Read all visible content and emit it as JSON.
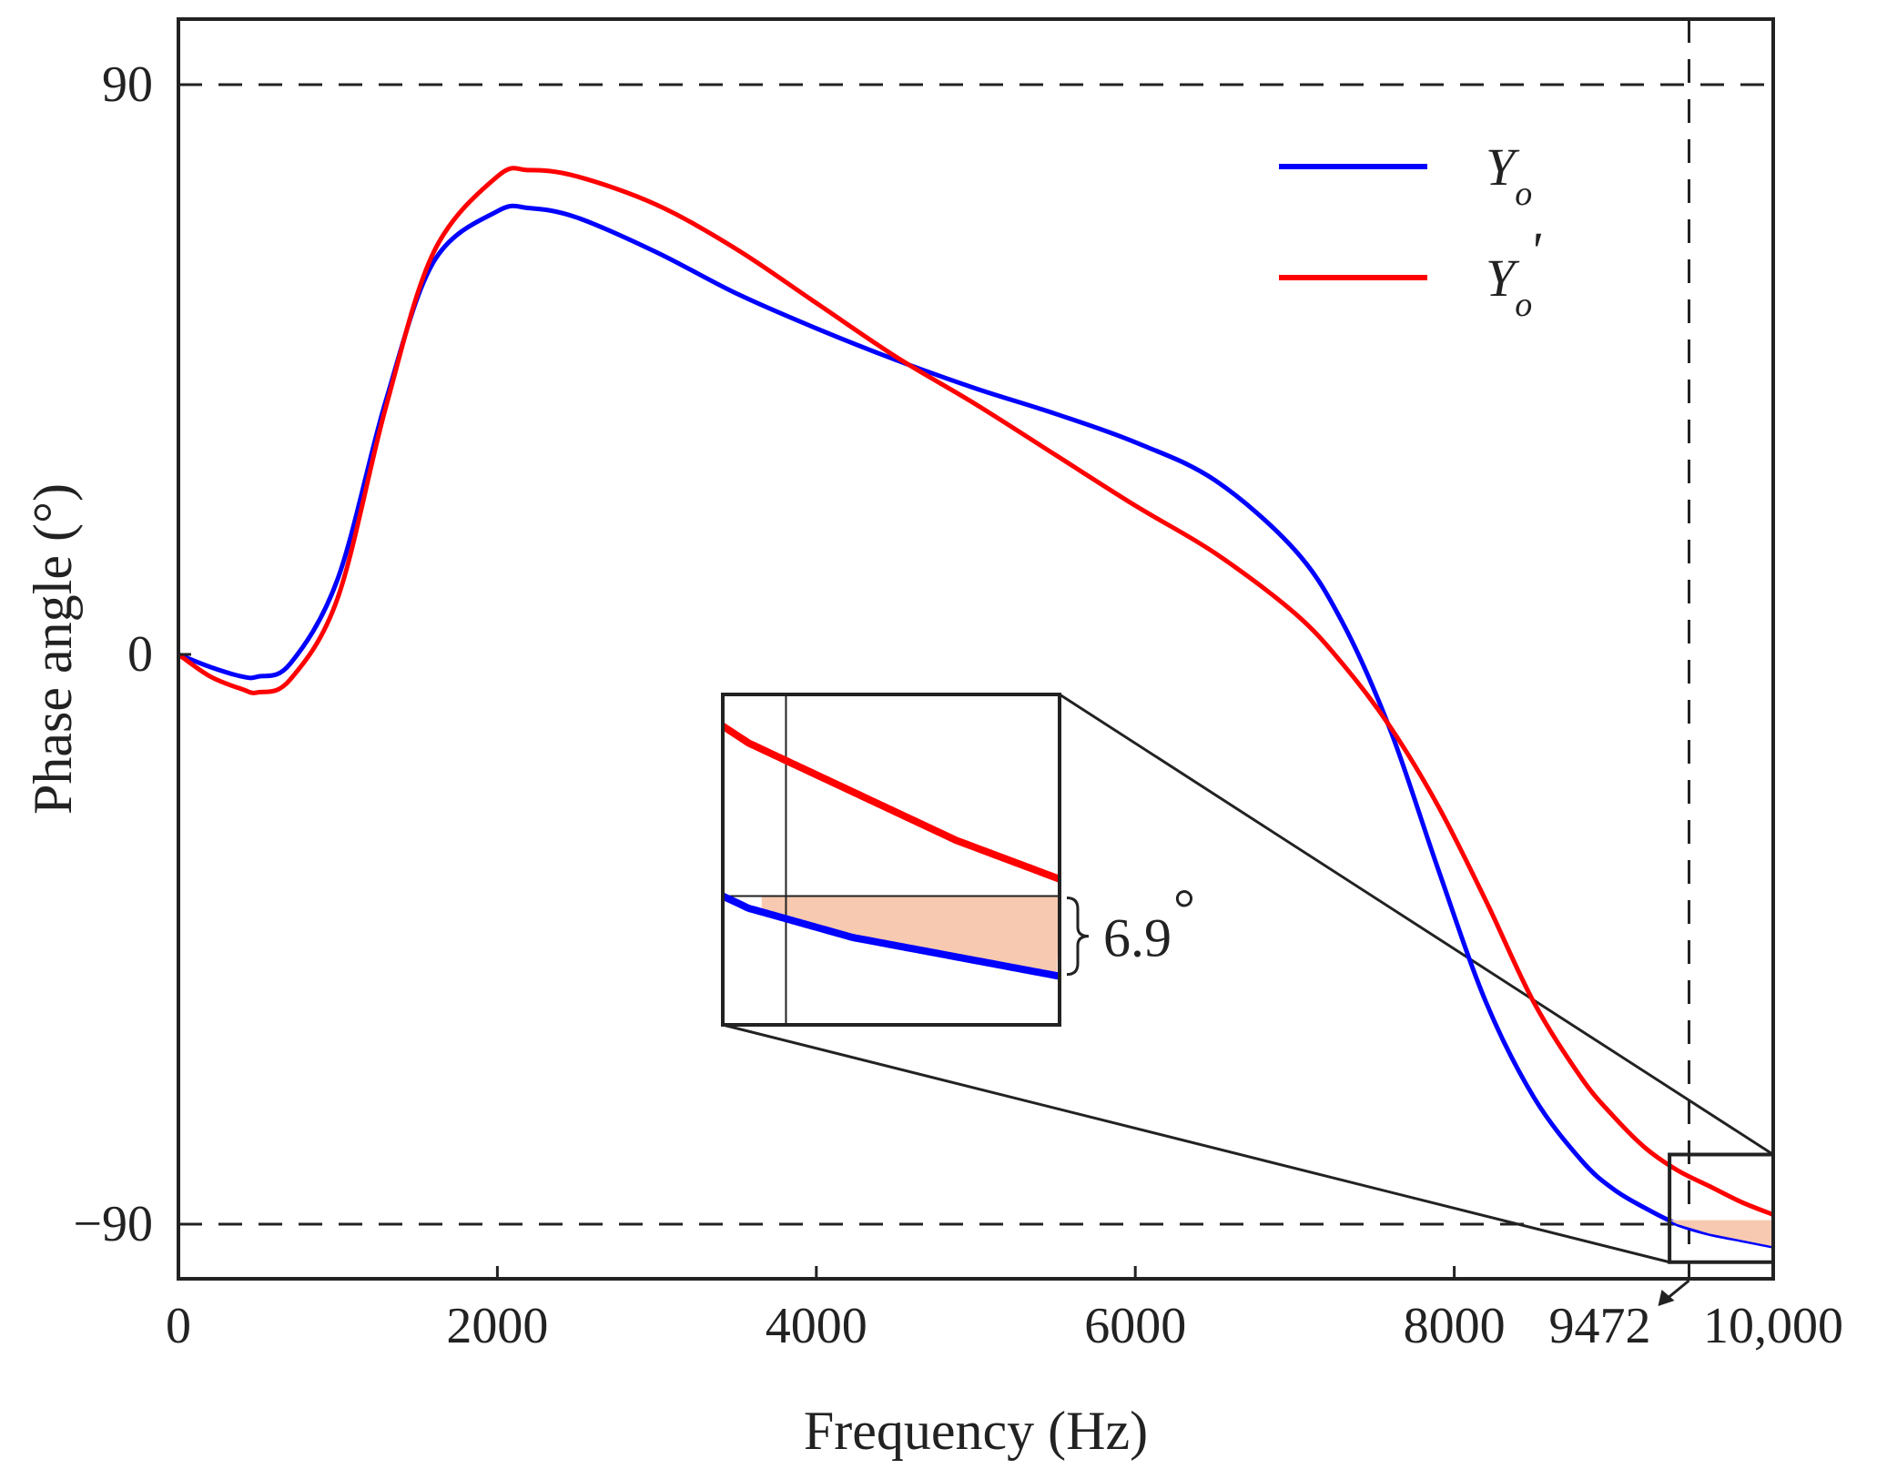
{
  "chart_data": {
    "type": "line",
    "xlabel": "Frequency (Hz)",
    "ylabel": "Phase angle (°)",
    "xlim": [
      0,
      10000
    ],
    "ylim": [
      -100,
      104
    ],
    "x_ticks": [
      {
        "value": 0,
        "label": "0"
      },
      {
        "value": 2000,
        "label": "2000"
      },
      {
        "value": 4000,
        "label": "4000"
      },
      {
        "value": 6000,
        "label": "6000"
      },
      {
        "value": 8000,
        "label": "8000"
      },
      {
        "value": 10000,
        "label": "10,000"
      }
    ],
    "y_ticks": [
      {
        "value": 90,
        "label": "90"
      },
      {
        "value": 0,
        "label": "0"
      },
      {
        "value": -90,
        "label": "−90"
      }
    ],
    "reference_lines": {
      "horizontal": [
        90,
        -90
      ],
      "vertical": 9472,
      "vertical_label": "9472",
      "vertical_label_color": "#ff0000"
    },
    "series": [
      {
        "name": "Yo",
        "legend_main": "Y",
        "legend_sub": "o",
        "legend_sup": "",
        "color": "#0000ff",
        "x": [
          0,
          200,
          400,
          500,
          700,
          1000,
          1300,
          1600,
          2000,
          2200,
          2500,
          3000,
          3500,
          4000,
          4500,
          5000,
          5500,
          6000,
          6500,
          7000,
          7300,
          7600,
          7900,
          8200,
          8500,
          8800,
          9000,
          9200,
          9400,
          9600,
          9800,
          10000
        ],
        "y": [
          0,
          -2,
          -3.5,
          -3.5,
          -1.5,
          12,
          40,
          62,
          70,
          70.5,
          69,
          63.5,
          57,
          51.5,
          46.5,
          42,
          38,
          33.5,
          27.5,
          16.5,
          5,
          -12,
          -34,
          -55,
          -70,
          -80,
          -84.5,
          -87.5,
          -90,
          -91.5,
          -92.5,
          -93.5
        ]
      },
      {
        "name": "Y'o",
        "legend_main": "Y",
        "legend_sub": "o",
        "legend_sup": "'",
        "color": "#ff0000",
        "x": [
          0,
          200,
          400,
          500,
          700,
          1000,
          1300,
          1600,
          2000,
          2200,
          2500,
          3000,
          3500,
          4000,
          4500,
          5000,
          5500,
          6000,
          6500,
          7000,
          7300,
          7600,
          7900,
          8200,
          8500,
          8800,
          9000,
          9200,
          9400,
          9600,
          9800,
          10000
        ],
        "y": [
          0,
          -3.5,
          -5.5,
          -6,
          -4,
          9,
          39,
          63.5,
          75.5,
          76.5,
          75.5,
          71,
          64,
          55.5,
          47,
          39.5,
          31.5,
          23.5,
          16,
          6.5,
          -1.5,
          -11.5,
          -24,
          -39,
          -55,
          -67,
          -73,
          -78,
          -81.5,
          -84,
          -86.5,
          -88.5
        ]
      }
    ],
    "zoom_box": {
      "x_range": [
        9350,
        10000
      ],
      "y_range": [
        -96,
        -79
      ]
    },
    "inset": {
      "annotation": "6.9",
      "annotation_unit": "°",
      "difference_deg": 6.9
    }
  }
}
